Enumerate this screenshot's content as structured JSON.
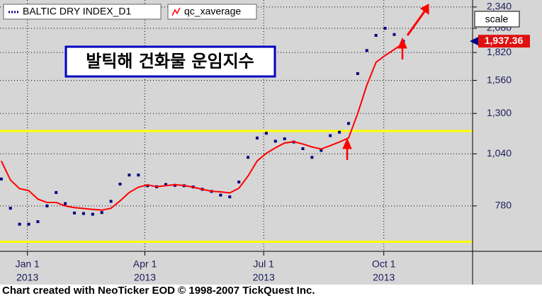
{
  "chart_data": {
    "type": "line",
    "annotation": "발틱해 건화물 운임지수",
    "footer": "Chart created with NeoTicker EOD © 1998-2007 TickQuest Inc.",
    "scale_button": "scale",
    "yscale": "log",
    "ylim": [
      607,
      2432
    ],
    "yticks": [
      {
        "value": 780,
        "label": "780"
      },
      {
        "value": 1040,
        "label": "1,040"
      },
      {
        "value": 1300,
        "label": "1,300"
      },
      {
        "value": 1560,
        "label": "1,560"
      },
      {
        "value": 1820,
        "label": "1,820"
      },
      {
        "value": 2080,
        "label": "2,080"
      },
      {
        "value": 2340,
        "label": "2,340"
      }
    ],
    "xlim": [
      "2012-12-11",
      "2013-12-08"
    ],
    "xticks": [
      {
        "value": "2013-01-01",
        "label": "Jan 1",
        "sublabel": "2013"
      },
      {
        "value": "2013-04-01",
        "label": "Apr 1",
        "sublabel": "2013"
      },
      {
        "value": "2013-07-01",
        "label": "Jul 1",
        "sublabel": "2013"
      },
      {
        "value": "2013-10-01",
        "label": "Oct 1",
        "sublabel": "2013"
      }
    ],
    "grid": true,
    "hlines": [
      {
        "value": 1180,
        "color": "#ffff00"
      },
      {
        "value": 640,
        "color": "#ffff00"
      }
    ],
    "last_price": {
      "value": 1937.36,
      "label": "1,937.36",
      "color": "#e01010"
    },
    "x": [
      "2012-12-12",
      "2012-12-19",
      "2012-12-26",
      "2013-01-02",
      "2013-01-09",
      "2013-01-16",
      "2013-01-23",
      "2013-01-30",
      "2013-02-06",
      "2013-02-13",
      "2013-02-20",
      "2013-02-27",
      "2013-03-06",
      "2013-03-13",
      "2013-03-20",
      "2013-03-27",
      "2013-04-03",
      "2013-04-10",
      "2013-04-17",
      "2013-04-24",
      "2013-05-01",
      "2013-05-08",
      "2013-05-15",
      "2013-05-22",
      "2013-05-29",
      "2013-06-05",
      "2013-06-12",
      "2013-06-19",
      "2013-06-26",
      "2013-07-03",
      "2013-07-10",
      "2013-07-17",
      "2013-07-24",
      "2013-07-31",
      "2013-08-07",
      "2013-08-14",
      "2013-08-21",
      "2013-08-28",
      "2013-09-04",
      "2013-09-11",
      "2013-09-18",
      "2013-09-25",
      "2013-10-02",
      "2013-10-09",
      "2013-10-16"
    ],
    "series": [
      {
        "name": "BALTIC DRY INDEX_D1",
        "color": "#000080",
        "style": "dots",
        "values": [
          905,
          770,
          705,
          705,
          715,
          780,
          840,
          790,
          750,
          748,
          745,
          752,
          800,
          880,
          925,
          925,
          872,
          867,
          878,
          874,
          872,
          866,
          855,
          845,
          828,
          820,
          890,
          1020,
          1135,
          1165,
          1115,
          1130,
          1110,
          1070,
          1020,
          1060,
          1150,
          1172,
          1230,
          1620,
          1840,
          2000,
          2080,
          2010,
          1937
        ]
      },
      {
        "name": "qc_xaverage",
        "color": "#ff0000",
        "style": "line",
        "values": [
          1000,
          900,
          858,
          849,
          810,
          795,
          795,
          780,
          773,
          769,
          765,
          762,
          770,
          802,
          840,
          865,
          876,
          867,
          872,
          877,
          873,
          865,
          855,
          846,
          843,
          838,
          860,
          920,
          1000,
          1043,
          1075,
          1104,
          1112,
          1098,
          1080,
          1068,
          1088,
          1110,
          1135,
          1300,
          1520,
          1724,
          1790,
          1850,
          1915
        ]
      }
    ]
  }
}
